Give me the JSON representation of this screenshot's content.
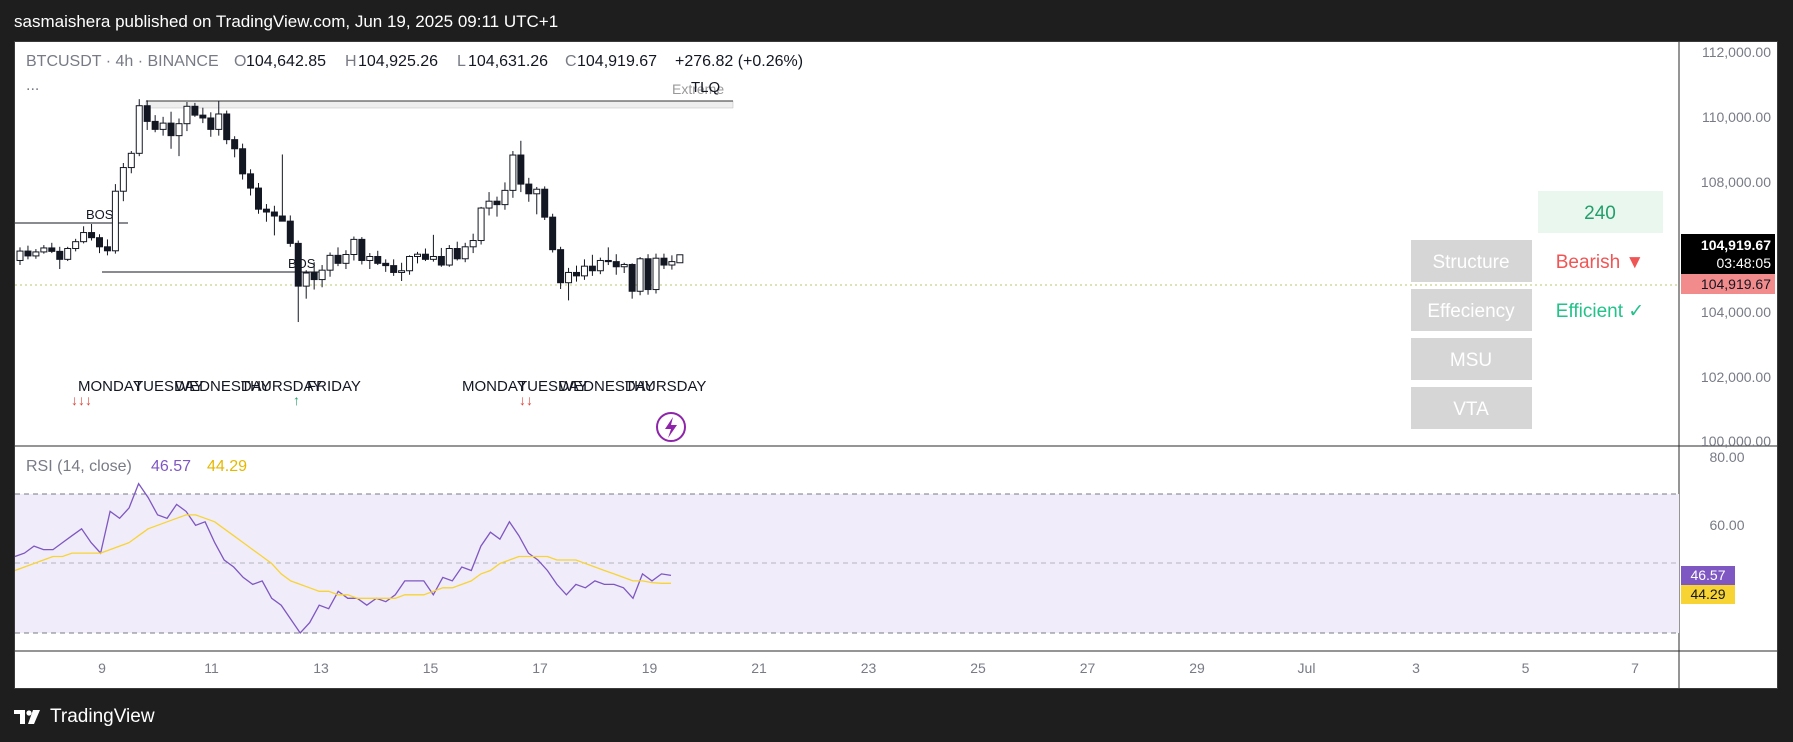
{
  "header": {
    "text": "sasmaishera published on TradingView.com, Jun 19, 2025 09:11 UTC+1"
  },
  "footer": {
    "brand": "TradingView",
    "logo_icon": "tradingview-logo-icon"
  },
  "legend": {
    "symbol": "BTCUSDT · 4h · BINANCE",
    "o_label": "O",
    "o": "104,642.85",
    "h_label": "H",
    "h": "104,925.26",
    "l_label": "L",
    "l": "104,631.26",
    "c_label": "C",
    "c": "104,919.67",
    "change": "+276.82 (+0.26%)",
    "more": "..."
  },
  "annotations": {
    "extreme": "Extreme",
    "tlq": "TLQ",
    "bos1": "BOS",
    "bos2": "BOS",
    "days_week1": [
      "MONDAY",
      "TUESDAY",
      "WEDNESDAY",
      "THURSDAY",
      "FRIDAY"
    ],
    "days_week2": [
      "MONDAY",
      "TUESDAY",
      "WEDNESDAY",
      "THURSDAY"
    ],
    "arrows1": "↓↓↓",
    "arrows2": "↑",
    "arrows3": "↓↓"
  },
  "table": {
    "value_240": "240",
    "rows": [
      "Structure",
      "Effeciency",
      "MSU",
      "VTA"
    ],
    "structure_value": "Bearish ▼",
    "efficiency_value": "Efficient ✓",
    "colors": {
      "bearish": "#f05555",
      "efficient": "#22c28a",
      "cell_bg": "#d6d6d6",
      "green_bg": "#e9f7ee"
    }
  },
  "price_axis": {
    "ticks": [
      "112,000.00",
      "110,000.00",
      "108,000.00",
      "104,000.00",
      "102,000.00",
      "100,000.00"
    ],
    "last_price": "104,919.67",
    "countdown": "03:48:05",
    "last_price_2": "104,919.67"
  },
  "rsi": {
    "label": "RSI (14, close)",
    "value": "46.57",
    "ma_value": "44.29",
    "ticks": [
      "80.00",
      "60.00"
    ],
    "colors": {
      "rsi": "#7e57c2",
      "ma": "#f7d433",
      "band": "#f1ecf9"
    }
  },
  "time_axis": {
    "ticks": [
      "9",
      "11",
      "13",
      "15",
      "17",
      "19",
      "21",
      "23",
      "25",
      "27",
      "29",
      "Jul",
      "3",
      "5",
      "7"
    ]
  },
  "chart_data": [
    {
      "type": "candlestick",
      "title": "BTCUSDT · 4h · BINANCE",
      "ylim": [
        100000,
        112000
      ],
      "x_ticks": [
        "9",
        "11",
        "13",
        "15",
        "17",
        "19"
      ],
      "candles": [
        {
          "o": 104720,
          "h": 105180,
          "l": 104560,
          "c": 105050
        },
        {
          "o": 105050,
          "h": 105240,
          "l": 104760,
          "c": 104880
        },
        {
          "o": 104880,
          "h": 105120,
          "l": 104780,
          "c": 105020
        },
        {
          "o": 105020,
          "h": 105260,
          "l": 104960,
          "c": 105160
        },
        {
          "o": 105160,
          "h": 105340,
          "l": 104980,
          "c": 105040
        },
        {
          "o": 105040,
          "h": 105200,
          "l": 104420,
          "c": 104760
        },
        {
          "o": 104760,
          "h": 105200,
          "l": 104700,
          "c": 105140
        },
        {
          "o": 105140,
          "h": 105480,
          "l": 105040,
          "c": 105380
        },
        {
          "o": 105380,
          "h": 105920,
          "l": 105320,
          "c": 105700
        },
        {
          "o": 105700,
          "h": 106000,
          "l": 105420,
          "c": 105520
        },
        {
          "o": 105520,
          "h": 105640,
          "l": 104980,
          "c": 105200
        },
        {
          "o": 105200,
          "h": 105460,
          "l": 104900,
          "c": 105060
        },
        {
          "o": 105060,
          "h": 107400,
          "l": 104960,
          "c": 107150
        },
        {
          "o": 107150,
          "h": 108140,
          "l": 106800,
          "c": 107980
        },
        {
          "o": 107980,
          "h": 108560,
          "l": 107780,
          "c": 108480
        },
        {
          "o": 108480,
          "h": 110380,
          "l": 108380,
          "c": 110150
        },
        {
          "o": 110150,
          "h": 110340,
          "l": 109300,
          "c": 109600
        },
        {
          "o": 109600,
          "h": 109820,
          "l": 109220,
          "c": 109320
        },
        {
          "o": 109320,
          "h": 109760,
          "l": 109100,
          "c": 109540
        },
        {
          "o": 109540,
          "h": 109940,
          "l": 108640,
          "c": 109100
        },
        {
          "o": 109100,
          "h": 109700,
          "l": 108380,
          "c": 109520
        },
        {
          "o": 109520,
          "h": 110280,
          "l": 109260,
          "c": 110130
        },
        {
          "o": 110130,
          "h": 110250,
          "l": 109760,
          "c": 109820
        },
        {
          "o": 109820,
          "h": 110080,
          "l": 109540,
          "c": 109720
        },
        {
          "o": 109720,
          "h": 109920,
          "l": 109060,
          "c": 109320
        },
        {
          "o": 109320,
          "h": 110320,
          "l": 109100,
          "c": 109860
        },
        {
          "o": 109860,
          "h": 109980,
          "l": 108800,
          "c": 108960
        },
        {
          "o": 108960,
          "h": 109080,
          "l": 108340,
          "c": 108640
        },
        {
          "o": 108640,
          "h": 108820,
          "l": 107560,
          "c": 107760
        },
        {
          "o": 107760,
          "h": 107920,
          "l": 107000,
          "c": 107260
        },
        {
          "o": 107260,
          "h": 107440,
          "l": 106360,
          "c": 106520
        },
        {
          "o": 106520,
          "h": 106700,
          "l": 106080,
          "c": 106420
        },
        {
          "o": 106420,
          "h": 106640,
          "l": 105600,
          "c": 106280
        },
        {
          "o": 106280,
          "h": 108440,
          "l": 106100,
          "c": 106100
        },
        {
          "o": 106100,
          "h": 106300,
          "l": 105200,
          "c": 105320
        },
        {
          "o": 105320,
          "h": 105420,
          "l": 102560,
          "c": 103820
        },
        {
          "o": 103820,
          "h": 104380,
          "l": 103380,
          "c": 104280
        },
        {
          "o": 104280,
          "h": 104660,
          "l": 103700,
          "c": 104050
        },
        {
          "o": 104050,
          "h": 104560,
          "l": 103780,
          "c": 104380
        },
        {
          "o": 104380,
          "h": 105000,
          "l": 104150,
          "c": 104900
        },
        {
          "o": 104900,
          "h": 105180,
          "l": 104520,
          "c": 104620
        },
        {
          "o": 104620,
          "h": 105080,
          "l": 104420,
          "c": 104930
        },
        {
          "o": 104930,
          "h": 105560,
          "l": 104720,
          "c": 105460
        },
        {
          "o": 105460,
          "h": 105540,
          "l": 104580,
          "c": 104720
        },
        {
          "o": 104720,
          "h": 104980,
          "l": 104420,
          "c": 104860
        },
        {
          "o": 104860,
          "h": 105060,
          "l": 104560,
          "c": 104620
        },
        {
          "o": 104620,
          "h": 104760,
          "l": 104320,
          "c": 104540
        },
        {
          "o": 104540,
          "h": 104760,
          "l": 104180,
          "c": 104300
        },
        {
          "o": 104300,
          "h": 104640,
          "l": 104000,
          "c": 104360
        },
        {
          "o": 104360,
          "h": 104900,
          "l": 104220,
          "c": 104860
        },
        {
          "o": 104860,
          "h": 105020,
          "l": 104620,
          "c": 104940
        },
        {
          "o": 104940,
          "h": 105140,
          "l": 104700,
          "c": 104760
        },
        {
          "o": 104760,
          "h": 105620,
          "l": 104680,
          "c": 104860
        },
        {
          "o": 104860,
          "h": 105160,
          "l": 104500,
          "c": 104560
        },
        {
          "o": 104560,
          "h": 105260,
          "l": 104500,
          "c": 105140
        },
        {
          "o": 105140,
          "h": 105380,
          "l": 104720,
          "c": 104780
        },
        {
          "o": 104780,
          "h": 105340,
          "l": 104660,
          "c": 105200
        },
        {
          "o": 105200,
          "h": 105660,
          "l": 104980,
          "c": 105420
        },
        {
          "o": 105420,
          "h": 106600,
          "l": 105280,
          "c": 106560
        },
        {
          "o": 106560,
          "h": 107120,
          "l": 106300,
          "c": 106800
        },
        {
          "o": 106800,
          "h": 106960,
          "l": 106260,
          "c": 106680
        },
        {
          "o": 106680,
          "h": 107460,
          "l": 106500,
          "c": 107180
        },
        {
          "o": 107180,
          "h": 108560,
          "l": 106920,
          "c": 108420
        },
        {
          "o": 108420,
          "h": 108920,
          "l": 107120,
          "c": 107400
        },
        {
          "o": 107400,
          "h": 107620,
          "l": 106780,
          "c": 107060
        },
        {
          "o": 107060,
          "h": 107300,
          "l": 106340,
          "c": 107220
        },
        {
          "o": 107220,
          "h": 107320,
          "l": 106140,
          "c": 106240
        },
        {
          "o": 106240,
          "h": 106360,
          "l": 105000,
          "c": 105100
        },
        {
          "o": 105100,
          "h": 105200,
          "l": 103720,
          "c": 103940
        },
        {
          "o": 103940,
          "h": 104460,
          "l": 103320,
          "c": 104300
        },
        {
          "o": 104300,
          "h": 104540,
          "l": 103980,
          "c": 104180
        },
        {
          "o": 104180,
          "h": 104760,
          "l": 104040,
          "c": 104520
        },
        {
          "o": 104520,
          "h": 104920,
          "l": 104180,
          "c": 104360
        },
        {
          "o": 104360,
          "h": 104820,
          "l": 104240,
          "c": 104720
        },
        {
          "o": 104720,
          "h": 105180,
          "l": 104560,
          "c": 104680
        },
        {
          "o": 104680,
          "h": 104940,
          "l": 104220,
          "c": 104500
        },
        {
          "o": 104500,
          "h": 104640,
          "l": 104280,
          "c": 104580
        },
        {
          "o": 104580,
          "h": 104620,
          "l": 103380,
          "c": 103640
        },
        {
          "o": 103640,
          "h": 104840,
          "l": 103500,
          "c": 104780
        },
        {
          "o": 104780,
          "h": 104940,
          "l": 103520,
          "c": 103700
        },
        {
          "o": 103700,
          "h": 104960,
          "l": 103560,
          "c": 104800
        },
        {
          "o": 104800,
          "h": 104960,
          "l": 104420,
          "c": 104560
        },
        {
          "o": 104560,
          "h": 104900,
          "l": 104400,
          "c": 104680
        },
        {
          "o": 104640,
          "h": 104920,
          "l": 104630,
          "c": 104920
        }
      ],
      "last_price": 104919.67,
      "extreme_zone": [
        110300,
        110500
      ],
      "bos_levels": [
        106950,
        105370
      ]
    },
    {
      "type": "line",
      "title": "RSI (14, close)",
      "ylim": [
        30,
        80
      ],
      "bands": [
        70,
        50,
        30
      ],
      "series": [
        {
          "name": "RSI (14, close)",
          "values": [
            52,
            53,
            55,
            54,
            54,
            56,
            58,
            60,
            56,
            53,
            65,
            63,
            66,
            73,
            69,
            64,
            63,
            67,
            65,
            61,
            62,
            56,
            51,
            49,
            46,
            44,
            45,
            40,
            38,
            34,
            30,
            33,
            38,
            37,
            42,
            40,
            40,
            38,
            40,
            39,
            41,
            45,
            45,
            45,
            41,
            46,
            45,
            49,
            48,
            55,
            59,
            57,
            62,
            58,
            53,
            51,
            48,
            44,
            41,
            44,
            43,
            45,
            44,
            44,
            43,
            40,
            47,
            45,
            47,
            46.57
          ]
        },
        {
          "name": "",
          "values": [
            48,
            49,
            50,
            51,
            52,
            52,
            53,
            53,
            53,
            53,
            54,
            55,
            56,
            58,
            60,
            61,
            62,
            63,
            64,
            64,
            63,
            62,
            60,
            58,
            56,
            54,
            52,
            50,
            47,
            45,
            44,
            43,
            42,
            42,
            41,
            41,
            40,
            40,
            40,
            40,
            40,
            41,
            41,
            41,
            42,
            43,
            43,
            44,
            45,
            47,
            48,
            50,
            51,
            52,
            52,
            52,
            52,
            51,
            51,
            51,
            50,
            49,
            48,
            47,
            46,
            45,
            45,
            44.5,
            44.29,
            44.29
          ]
        }
      ],
      "value_labels": [
        "46.57",
        "44.29"
      ]
    }
  ]
}
